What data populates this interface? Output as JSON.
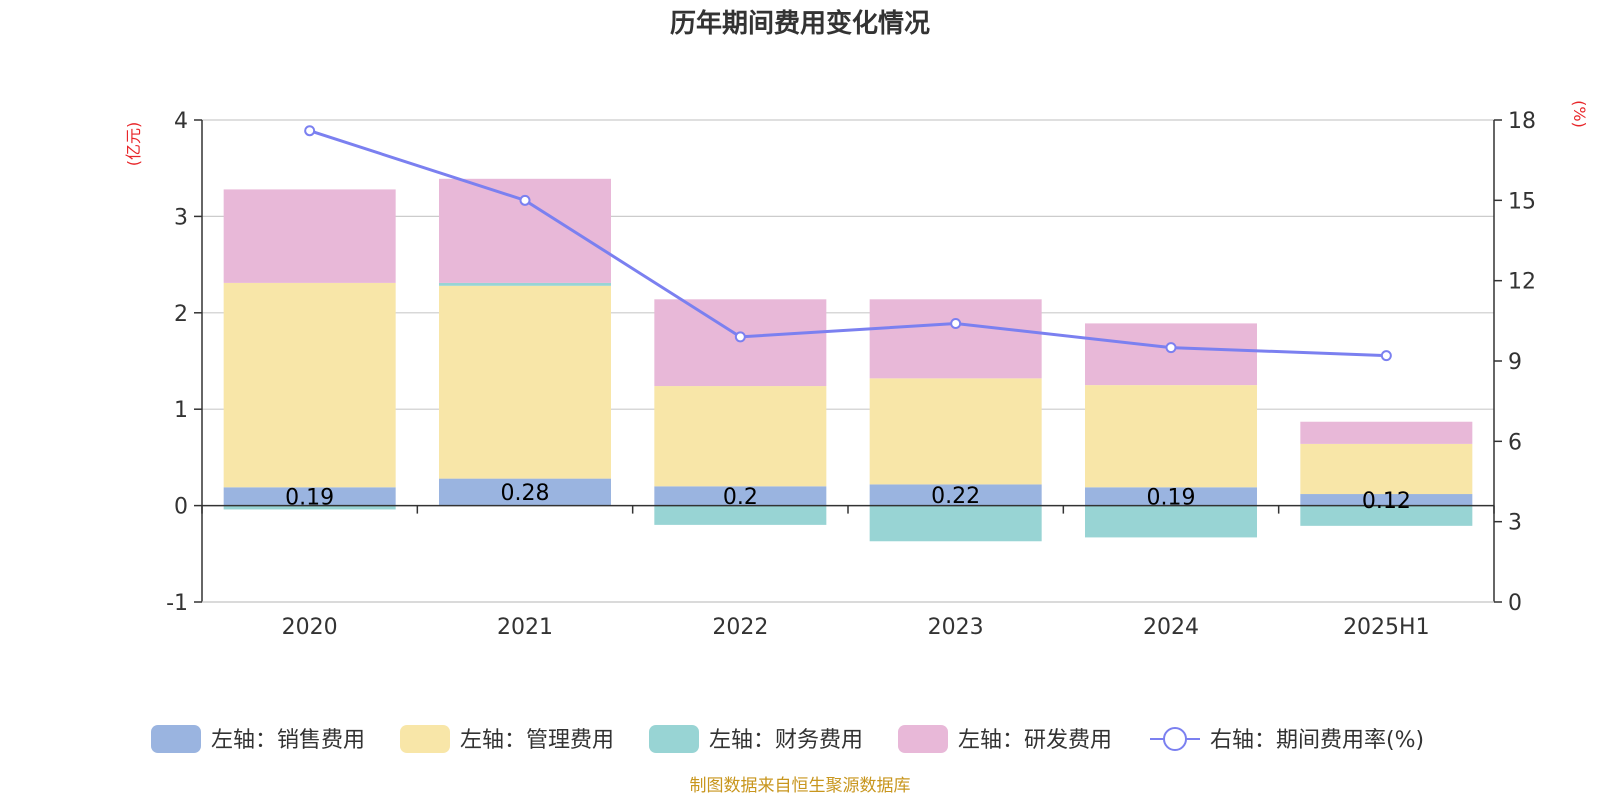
{
  "chart_data": {
    "type": "bar",
    "title": "历年期间费用变化情况",
    "left_axis_unit": "(亿元)",
    "right_axis_unit": "(%)",
    "categories": [
      "2020",
      "2021",
      "2022",
      "2023",
      "2024",
      "2025H1"
    ],
    "ylim_left": [
      -1,
      4
    ],
    "yticks_left": [
      "-1",
      "0",
      "1",
      "2",
      "3",
      "4"
    ],
    "ylim_right": [
      0,
      18
    ],
    "yticks_right": [
      "0",
      "3",
      "6",
      "9",
      "12",
      "15",
      "18"
    ],
    "grid": true,
    "legend_position": "bottom",
    "series": [
      {
        "name": "左轴：销售费用",
        "axis": "left",
        "type": "bar",
        "color": "#9ab4e0",
        "values": [
          0.19,
          0.28,
          0.2,
          0.22,
          0.19,
          0.12
        ],
        "labels": [
          "0.19",
          "0.28",
          "0.2",
          "0.22",
          "0.19",
          "0.12"
        ]
      },
      {
        "name": "左轴：管理费用",
        "axis": "left",
        "type": "bar",
        "color": "#f8e6a8",
        "values": [
          2.12,
          2.0,
          1.04,
          1.1,
          1.06,
          0.52
        ]
      },
      {
        "name": "左轴：财务费用",
        "axis": "left",
        "type": "bar",
        "color": "#98d4d4",
        "values": [
          -0.04,
          0.03,
          -0.2,
          -0.37,
          -0.33,
          -0.21
        ]
      },
      {
        "name": "左轴：研发费用",
        "axis": "left",
        "type": "bar",
        "color": "#e8b8d8",
        "values": [
          0.97,
          1.08,
          0.9,
          0.82,
          0.64,
          0.23
        ]
      },
      {
        "name": "右轴：期间费用率(%)",
        "axis": "right",
        "type": "line",
        "color": "#7b80f0",
        "values": [
          17.6,
          15.0,
          9.9,
          10.4,
          9.5,
          9.2
        ]
      }
    ]
  },
  "source_note": "制图数据来自恒生聚源数据库"
}
